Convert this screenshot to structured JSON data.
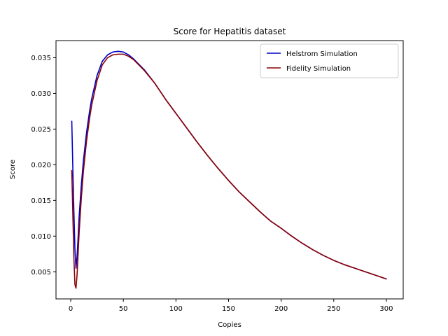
{
  "chart_data": {
    "type": "line",
    "title": "Score for Hepatitis dataset",
    "xlabel": "Copies",
    "ylabel": "Score",
    "xlim": [
      -14,
      316
    ],
    "ylim": [
      0.0012,
      0.0374
    ],
    "xticks": [
      0,
      50,
      100,
      150,
      200,
      250,
      300
    ],
    "yticks": [
      0.005,
      0.01,
      0.015,
      0.02,
      0.025,
      0.03,
      0.035
    ],
    "xtick_labels": [
      "0",
      "50",
      "100",
      "150",
      "200",
      "250",
      "300"
    ],
    "ytick_labels": [
      "0.005",
      "0.010",
      "0.015",
      "0.020",
      "0.025",
      "0.030",
      "0.035"
    ],
    "grid": false,
    "legend": "top-right",
    "series": [
      {
        "name": "Helstrom Simulation",
        "color": "#0000cc",
        "x": [
          1,
          2,
          3,
          4,
          5,
          6,
          7,
          8,
          10,
          12,
          15,
          18,
          20,
          25,
          30,
          35,
          40,
          45,
          50,
          55,
          60,
          70,
          80,
          90,
          100,
          110,
          120,
          130,
          140,
          150,
          160,
          170,
          180,
          190,
          200,
          210,
          220,
          230,
          240,
          250,
          260,
          270,
          280,
          290,
          300
        ],
        "y": [
          0.0261,
          0.0195,
          0.0135,
          0.0082,
          0.0055,
          0.0071,
          0.0098,
          0.0128,
          0.017,
          0.0205,
          0.0245,
          0.0276,
          0.0293,
          0.0325,
          0.0345,
          0.0354,
          0.0358,
          0.0359,
          0.0358,
          0.0354,
          0.0348,
          0.0333,
          0.0314,
          0.0292,
          0.0272,
          0.0252,
          0.0232,
          0.0213,
          0.0195,
          0.0178,
          0.0162,
          0.0148,
          0.0134,
          0.0121,
          0.0111,
          0.01,
          0.009,
          0.0081,
          0.0073,
          0.0066,
          0.006,
          0.0055,
          0.005,
          0.0045,
          0.004
        ]
      },
      {
        "name": "Fidelity Simulation",
        "color": "#8b0000",
        "x": [
          1,
          2,
          3,
          4,
          5,
          6,
          7,
          8,
          10,
          12,
          15,
          18,
          20,
          25,
          30,
          35,
          40,
          45,
          50,
          55,
          60,
          70,
          80,
          90,
          100,
          110,
          120,
          130,
          140,
          150,
          160,
          170,
          180,
          190,
          200,
          210,
          220,
          230,
          240,
          250,
          260,
          270,
          280,
          290,
          300
        ],
        "y": [
          0.0192,
          0.013,
          0.007,
          0.0032,
          0.0027,
          0.0045,
          0.0075,
          0.0105,
          0.0152,
          0.019,
          0.0233,
          0.0266,
          0.0284,
          0.0318,
          0.034,
          0.035,
          0.0354,
          0.0355,
          0.0355,
          0.0352,
          0.0347,
          0.0332,
          0.0314,
          0.0292,
          0.0272,
          0.0252,
          0.0232,
          0.0213,
          0.0195,
          0.0178,
          0.0162,
          0.0148,
          0.0134,
          0.0121,
          0.0111,
          0.01,
          0.009,
          0.0081,
          0.0073,
          0.0066,
          0.006,
          0.0055,
          0.005,
          0.0045,
          0.004
        ]
      }
    ]
  }
}
